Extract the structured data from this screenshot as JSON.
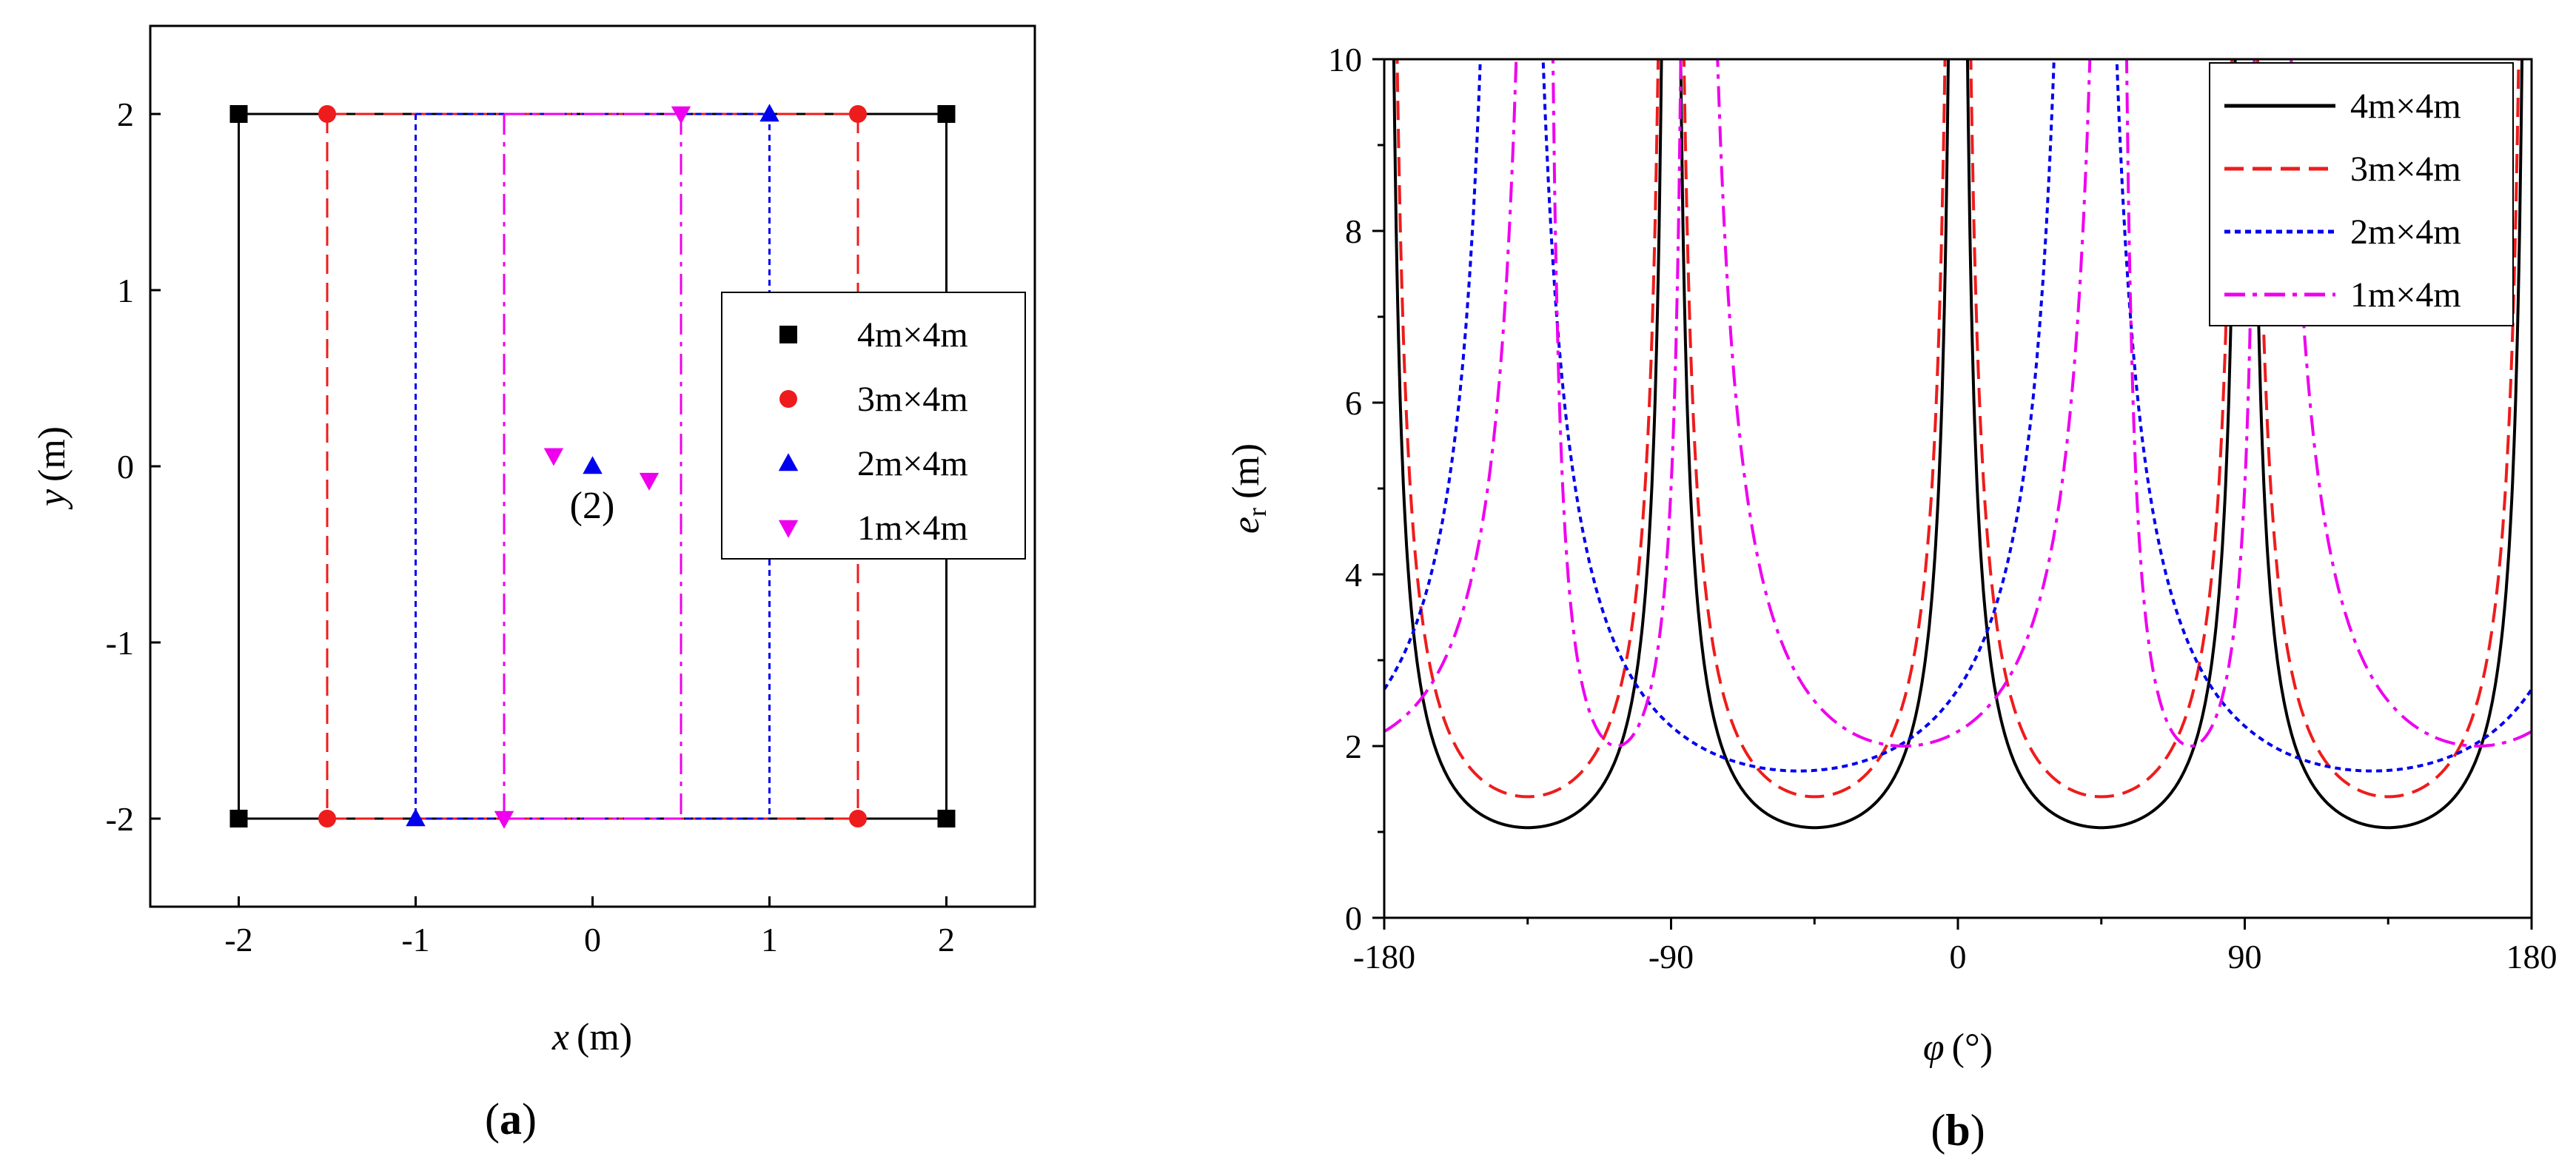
{
  "chart_data": [
    {
      "type": "scatter",
      "panel_label": "a",
      "xlabel": "x",
      "ylabel": "y",
      "unit": "(m)",
      "xlim": [
        -2.5,
        2.5
      ],
      "ylim": [
        -2.5,
        2.5
      ],
      "xticks": [
        "-2",
        "-1",
        "0",
        "1",
        "2"
      ],
      "yticks": [
        "-2",
        "-1",
        "0",
        "1",
        "2"
      ],
      "legend_position": "right",
      "annotation": "(2)",
      "annotation_color": "#0000ee",
      "series": [
        {
          "name": "4m×4m",
          "color": "#000000",
          "marker": "square",
          "dash": "solid",
          "points": [
            [
              -2,
              2
            ],
            [
              2,
              2
            ],
            [
              -2,
              -2
            ],
            [
              2,
              -2
            ]
          ],
          "inner_lines": []
        },
        {
          "name": "3m×4m",
          "color": "#ee1c1c",
          "marker": "circle",
          "dash": "dashed",
          "points": [
            [
              -1.5,
              2
            ],
            [
              1.5,
              2
            ],
            [
              -1.5,
              -2
            ],
            [
              1.5,
              -2
            ]
          ],
          "inner_lines": [
            -1.5,
            1.5
          ]
        },
        {
          "name": "2m×4m",
          "color": "#0000ee",
          "marker": "triangle-up",
          "dash": "dotted",
          "points": [
            [
              1,
              2
            ],
            [
              -1,
              -2
            ],
            [
              0,
              0
            ]
          ],
          "inner_lines": [
            -1,
            1
          ]
        },
        {
          "name": "1m×4m",
          "color": "#ee00ee",
          "marker": "triangle-down",
          "dash": "dashdot",
          "points": [
            [
              0.5,
              2
            ],
            [
              -0.5,
              -2
            ],
            [
              -0.22,
              0.06
            ],
            [
              0.32,
              -0.08
            ]
          ],
          "inner_lines": [
            -0.5,
            0.5
          ]
        }
      ]
    },
    {
      "type": "line",
      "panel_label": "b",
      "xlabel": "φ",
      "xunit": "(°)",
      "ylabel": "e",
      "ylabel_sub": "r",
      "yunit": "(m)",
      "xlim": [
        -180,
        180
      ],
      "ylim": [
        0,
        10
      ],
      "xticks": [
        "-180",
        "-90",
        "0",
        "90",
        "180"
      ],
      "yticks": [
        "0",
        "2",
        "4",
        "6",
        "8",
        "10"
      ],
      "legend_position": "top-right",
      "series": [
        {
          "name": "4m×4m",
          "color": "#000000",
          "dash": "solid",
          "min_value": 1.05,
          "min_angles": [
            -135,
            -45,
            45,
            135
          ],
          "poles": [
            -180,
            -90,
            0,
            90,
            180
          ]
        },
        {
          "name": "3m×4m",
          "color": "#ee1c1c",
          "dash": "dashed",
          "min_value": 1.41,
          "min_angles": [
            -135,
            -45,
            45,
            135
          ],
          "poles": [
            -180,
            -90,
            0,
            90,
            180
          ]
        },
        {
          "name": "2m×4m",
          "color": "#0000ee",
          "dash": "dotted",
          "min_value": 1.71,
          "min_angles": [
            -25,
            155
          ],
          "poles": [
            -140,
            40
          ]
        },
        {
          "name": "1m×4m",
          "color": "#ee00ee",
          "dash": "dashdot",
          "min_value": 2.0,
          "min_angles": [
            -13,
            167
          ],
          "poles": [
            -130,
            -84,
            50,
            96
          ]
        }
      ]
    }
  ]
}
